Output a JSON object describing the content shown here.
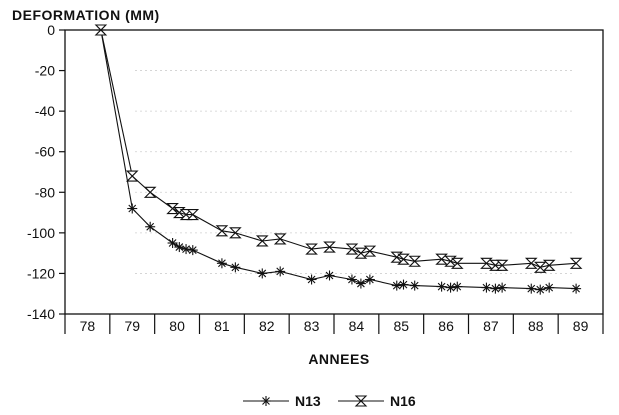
{
  "chart_data": {
    "type": "line",
    "ylabel": "DEFORMATION (MM)",
    "xlabel": "ANNEES",
    "categories": [
      "78",
      "79",
      "80",
      "81",
      "82",
      "83",
      "84",
      "85",
      "86",
      "87",
      "88",
      "89"
    ],
    "yticks": [
      0,
      -20,
      -40,
      -60,
      -80,
      -100,
      -120,
      -140
    ],
    "ylim": [
      -140,
      0
    ],
    "xlim": [
      78,
      89
    ],
    "grid": "horizontal",
    "legend_position": "bottom-center",
    "series": [
      {
        "name": "N13",
        "marker": "asterisk",
        "color": "#111111",
        "x": [
          78.3,
          79.0,
          79.4,
          79.9,
          80.05,
          80.2,
          80.35,
          81.0,
          81.3,
          81.9,
          82.3,
          83.0,
          83.4,
          83.9,
          84.1,
          84.3,
          84.9,
          85.05,
          85.3,
          85.9,
          86.1,
          86.25,
          86.9,
          87.1,
          87.25,
          87.9,
          88.1,
          88.3,
          88.9
        ],
        "y": [
          0,
          -88,
          -97,
          -105,
          -107,
          -108,
          -108.5,
          -115,
          -117,
          -120,
          -119,
          -123,
          -121,
          -123,
          -125,
          -123,
          -126,
          -125.5,
          -126,
          -126.5,
          -127,
          -126.5,
          -127,
          -127.5,
          -127,
          -127.5,
          -128,
          -127,
          -127.5
        ]
      },
      {
        "name": "N16",
        "marker": "hourglass",
        "color": "#111111",
        "x": [
          78.3,
          79.0,
          79.4,
          79.9,
          80.05,
          80.2,
          80.35,
          81.0,
          81.3,
          81.9,
          82.3,
          83.0,
          83.4,
          83.9,
          84.1,
          84.3,
          84.9,
          85.05,
          85.3,
          85.9,
          86.1,
          86.25,
          86.9,
          87.1,
          87.25,
          87.9,
          88.1,
          88.3,
          88.9
        ],
        "y": [
          0,
          -72,
          -80,
          -88,
          -90,
          -91,
          -91,
          -99,
          -100,
          -104,
          -103,
          -108,
          -107,
          -108,
          -110,
          -109,
          -112,
          -113,
          -114,
          -113,
          -114,
          -115,
          -115,
          -116,
          -116,
          -115,
          -117,
          -116,
          -115
        ]
      }
    ]
  }
}
